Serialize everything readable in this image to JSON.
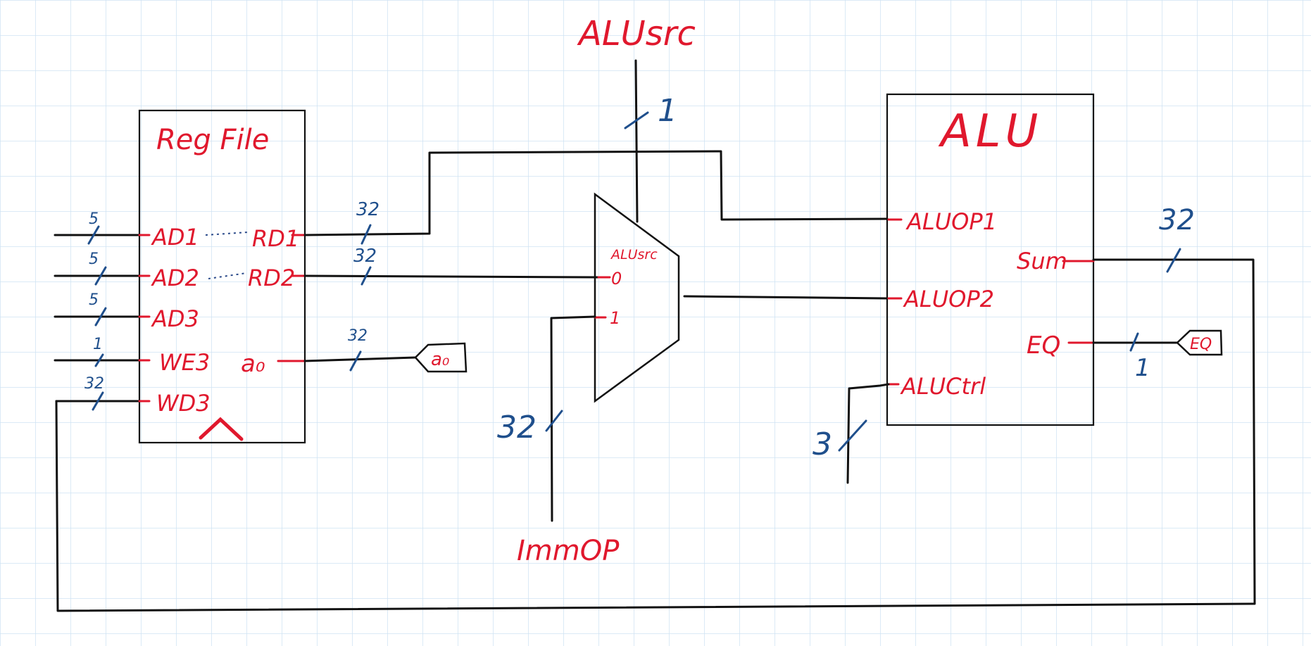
{
  "colors": {
    "grid": "#cfe3f4",
    "wire": "#111111",
    "label_red": "#e0182d",
    "width_blue": "#1f4f8c"
  },
  "register_file": {
    "title": "Reg File",
    "inputs": [
      {
        "label": "AD1",
        "width": "5"
      },
      {
        "label": "AD2",
        "width": "5"
      },
      {
        "label": "AD3",
        "width": "5"
      },
      {
        "label": "WE3",
        "width": "1"
      },
      {
        "label": "WD3",
        "width": "32"
      }
    ],
    "outputs": [
      {
        "label": "RD1",
        "width": "32"
      },
      {
        "label": "RD2",
        "width": "32"
      },
      {
        "label": "a0",
        "width": "32",
        "display": "a₀"
      }
    ]
  },
  "a0_port": {
    "label": "a₀"
  },
  "mux": {
    "select_label": "ALUsrc",
    "select_width": "1",
    "inputs": [
      "0",
      "1"
    ],
    "immop_width": "32"
  },
  "alu_src_signal": {
    "label": "ALUsrc"
  },
  "immop_signal": {
    "label": "ImmOP"
  },
  "alu": {
    "title": "ALU",
    "inputs": [
      {
        "label": "ALUOP1"
      },
      {
        "label": "ALUOP2"
      },
      {
        "label": "ALUCtrl",
        "width": "3"
      }
    ],
    "outputs": [
      {
        "label": "Sum",
        "width": "32"
      },
      {
        "label": "EQ",
        "width": "1"
      }
    ]
  },
  "eq_port": {
    "label": "EQ"
  }
}
